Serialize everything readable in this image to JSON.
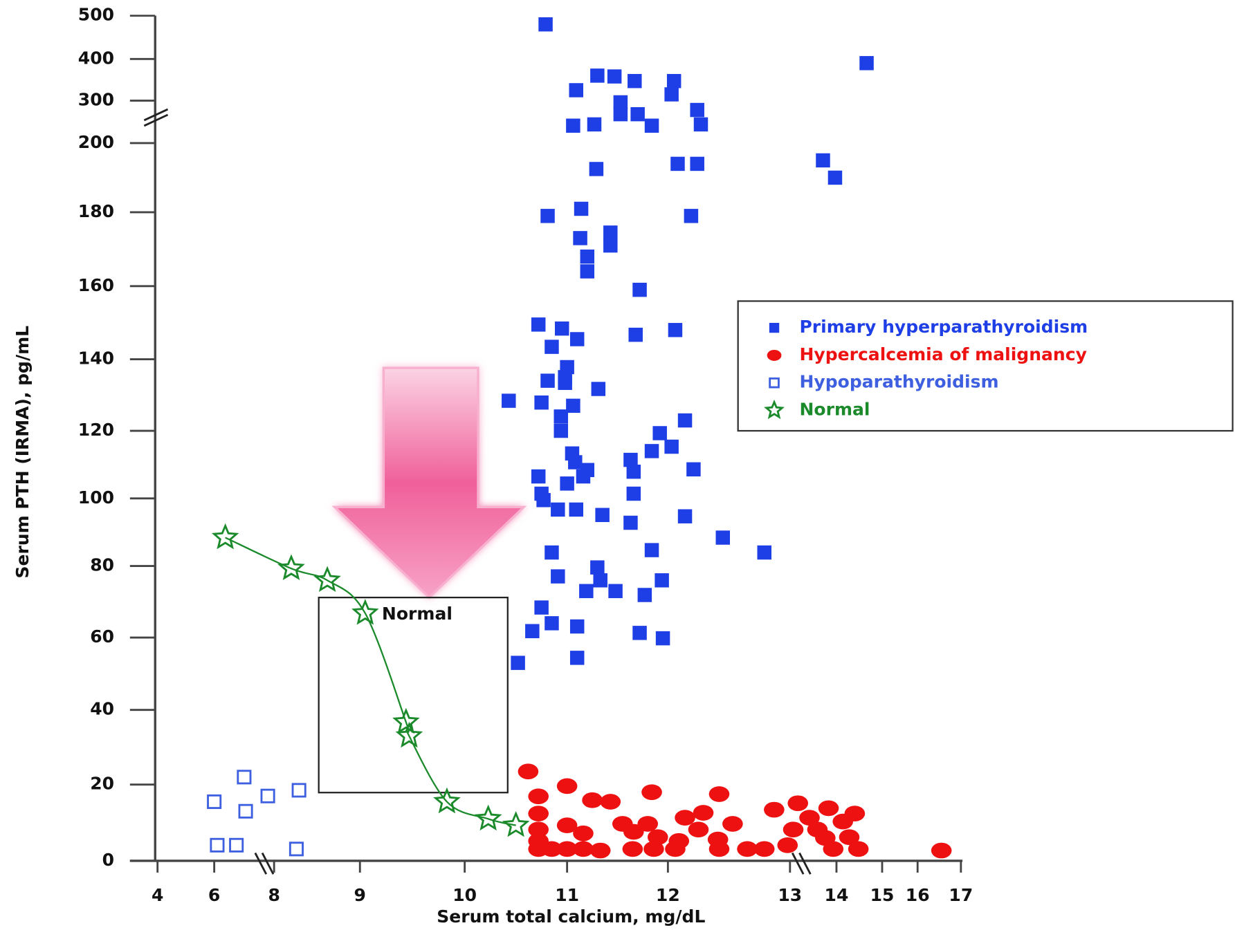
{
  "chart_data": {
    "type": "scatter",
    "x_label": "Serum total calcium, mg/dL",
    "y_label": "Serum PTH (IRMA), pg/mL",
    "xlim": [
      4,
      17
    ],
    "ylim": [
      0,
      500
    ],
    "xticks": [
      4,
      6,
      8,
      9,
      10,
      11,
      12,
      13,
      14,
      15,
      16,
      17
    ],
    "yticks": [
      0,
      20,
      40,
      60,
      80,
      100,
      120,
      140,
      160,
      180,
      200,
      300,
      400,
      500
    ],
    "legend": "right",
    "series": [
      {
        "name": "Primary hyperparathyroidism",
        "color": "#1f3fe6",
        "marker": "square",
        "x": [
          10.79,
          11.09,
          11.3,
          11.47,
          11.67,
          12.05,
          12.03,
          14.66,
          11.06,
          11.27,
          11.53,
          11.53,
          11.7,
          11.84,
          12.24,
          12.27,
          11.29,
          12.08,
          12.24,
          13.71,
          13.97,
          10.81,
          11.14,
          11.13,
          11.43,
          11.43,
          11.2,
          11.2,
          11.72,
          12.19,
          10.72,
          10.95,
          11.68,
          12.06,
          11.1,
          10.85,
          11.0,
          10.98,
          10.81,
          10.98,
          11.31,
          10.43,
          10.75,
          11.06,
          10.94,
          12.14,
          10.94,
          11.92,
          12.03,
          11.84,
          11.63,
          11.05,
          11.08,
          11.2,
          11.16,
          11.0,
          10.72,
          12.21,
          11.66,
          11.66,
          10.75,
          10.77,
          10.91,
          11.09,
          11.35,
          11.63,
          12.14,
          12.45,
          12.79,
          11.84,
          10.85,
          10.91,
          11.3,
          11.33,
          11.19,
          11.48,
          11.77,
          11.94,
          10.75,
          10.85,
          10.66,
          11.1,
          11.72,
          11.95,
          11.1,
          10.52
        ],
        "values": [
          480,
          325,
          360,
          358,
          347,
          347,
          315,
          390,
          241,
          244,
          296,
          268,
          268,
          241,
          278,
          244,
          192.5,
          194,
          194,
          195,
          190,
          179,
          181,
          173,
          174.5,
          171,
          168,
          164,
          159,
          179,
          149.5,
          148.4,
          146.7,
          148,
          145.5,
          143.4,
          137.8,
          135,
          134,
          133.4,
          131.7,
          128.4,
          127.9,
          127,
          124,
          122.9,
          120,
          119.3,
          115.3,
          114,
          111.4,
          113.3,
          110.7,
          108.4,
          106.5,
          104.4,
          106.5,
          108.6,
          107.9,
          101.4,
          101.4,
          99.5,
          96.7,
          96.7,
          95.1,
          92.8,
          94.7,
          88.4,
          84,
          84.7,
          84,
          77.1,
          79.6,
          76,
          73,
          73,
          71.9,
          76,
          68.4,
          64,
          61.8,
          63.1,
          61.3,
          59.8,
          54.4,
          53
        ]
      },
      {
        "name": "Hypercalcemia of malignancy",
        "color": "#ee1111",
        "marker": "circle",
        "x": [
          10.62,
          10.72,
          11.0,
          11.25,
          11.43,
          11.84,
          12.42,
          10.72,
          10.72,
          10.72,
          10.72,
          10.85,
          11.0,
          11.16,
          11.0,
          11.16,
          11.33,
          11.55,
          11.66,
          11.8,
          11.65,
          11.86,
          11.9,
          12.09,
          12.06,
          12.14,
          12.29,
          12.25,
          12.41,
          12.42,
          12.53,
          12.65,
          12.79,
          12.87,
          12.98,
          13.07,
          13.17,
          13.42,
          13.59,
          13.83,
          13.76,
          13.93,
          14.14,
          14.4,
          14.28,
          14.48,
          16.55
        ],
        "values": [
          23.5,
          16.9,
          19.6,
          15.9,
          15.5,
          18,
          17.5,
          12.4,
          8.2,
          5.2,
          3.1,
          3.1,
          9.3,
          7.2,
          3.1,
          3.1,
          2.7,
          9.7,
          7.6,
          9.7,
          3.1,
          3.1,
          6.2,
          5.2,
          3.1,
          11.3,
          12.6,
          8.2,
          5.6,
          3.1,
          9.7,
          3.1,
          3.1,
          13.4,
          4.1,
          8.2,
          15.1,
          11.3,
          8.2,
          13.8,
          6,
          3.1,
          10.3,
          12.4,
          6.2,
          3.1,
          2.7
        ]
      },
      {
        "name": "Hypoparathyroidism",
        "color": "#3d5fe0",
        "marker": "open-square",
        "x": [
          6.0,
          7.0,
          7.79,
          7.05,
          8.29,
          6.1,
          6.74,
          8.26
        ],
        "values": [
          15.5,
          22,
          17,
          13,
          18.5,
          4.1,
          4.1,
          3.1
        ]
      },
      {
        "name": "Normal",
        "color": "#1a8a2a",
        "marker": "star",
        "curve": true,
        "x": [
          6.37,
          8.2,
          8.62,
          9.05,
          9.44,
          9.47,
          9.83,
          10.23,
          10.5
        ],
        "values": [
          88.4,
          79.3,
          76,
          66.8,
          36.7,
          33,
          15.5,
          11,
          9.3
        ]
      }
    ],
    "normal_range": {
      "label": "Normal",
      "calcium": [
        8.52,
        10.42
      ],
      "pth": [
        17.9,
        71.2
      ]
    }
  }
}
